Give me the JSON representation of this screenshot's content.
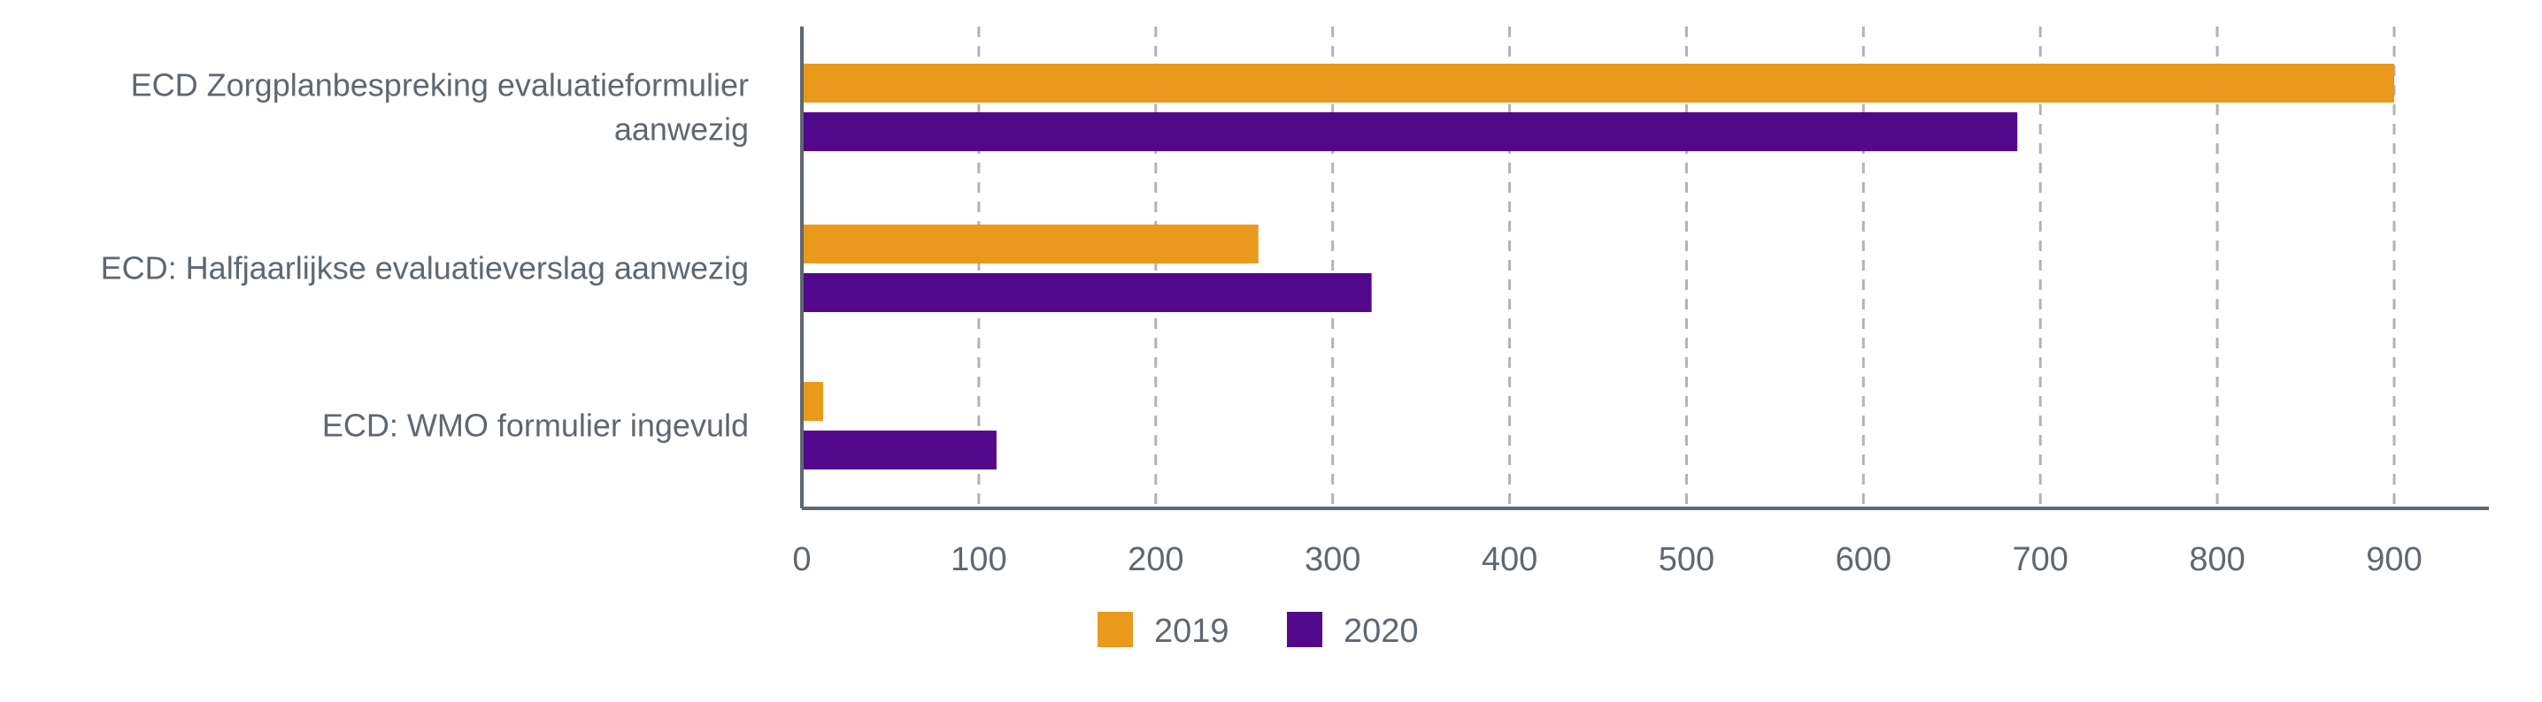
{
  "chart_data": {
    "type": "bar",
    "orientation": "horizontal",
    "title": "",
    "xlabel": "",
    "ylabel": "",
    "categories": [
      [
        "ECD Zorgplanbespreking evaluatieformulier",
        "aanwezig"
      ],
      [
        "ECD: Halfjaarlijkse evaluatieverslag aanwezig"
      ],
      [
        "ECD: WMO formulier ingevuld"
      ]
    ],
    "series": [
      {
        "name": "2019",
        "color": "#E9991C",
        "values": [
          900,
          258,
          12
        ]
      },
      {
        "name": "2020",
        "color": "#52088A",
        "values": [
          687,
          322,
          110
        ]
      }
    ],
    "xlim": [
      0,
      950
    ],
    "xticks": [
      0,
      100,
      200,
      300,
      400,
      500,
      600,
      700,
      800,
      900
    ],
    "grid": "vertical-dashed",
    "legend": "bottom-center"
  }
}
